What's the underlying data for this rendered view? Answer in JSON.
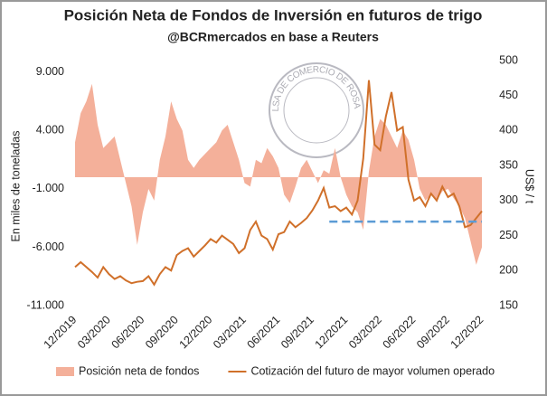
{
  "chart_data": {
    "type": "area_line",
    "title": "Posición Neta de Fondos de Inversión en futuros de trigo",
    "subtitle": "@BCRmercados en base a Reuters",
    "watermark": "BOLSA DE COMERCIO DE ROSARIO",
    "ylabel": "En miles de toneladas",
    "y2label": "US$ / t",
    "categories": [
      "12/2019",
      null,
      null,
      null,
      null,
      null,
      "03/2020",
      null,
      null,
      null,
      null,
      null,
      "06/2020",
      null,
      null,
      null,
      null,
      null,
      "09/2020",
      null,
      null,
      null,
      null,
      null,
      "12/2020",
      null,
      null,
      null,
      null,
      null,
      "03/2021",
      null,
      null,
      null,
      null,
      null,
      "06/2021",
      null,
      null,
      null,
      null,
      null,
      "09/2021",
      null,
      null,
      null,
      null,
      null,
      "12/2021",
      null,
      null,
      null,
      null,
      null,
      "03/2022",
      null,
      null,
      null,
      null,
      null,
      "06/2022",
      null,
      null,
      null,
      null,
      null,
      "09/2022",
      null,
      null,
      null,
      null,
      null,
      "12/2022"
    ],
    "series": [
      {
        "name": "Posición neta de fondos",
        "color": "#f4b09a",
        "kind": "area",
        "values": [
          3000,
          5500,
          6500,
          8000,
          4500,
          2500,
          3000,
          3500,
          1500,
          -500,
          -2500,
          -5800,
          -3000,
          -1000,
          -2000,
          1500,
          3500,
          6500,
          5000,
          4000,
          1500,
          800,
          1500,
          2000,
          2500,
          3000,
          4000,
          4500,
          3000,
          1500,
          -500,
          -800,
          1500,
          1200,
          2500,
          1800,
          800,
          -1500,
          -2200,
          -800,
          800,
          1500,
          500,
          -500,
          600,
          300,
          2500,
          0,
          -1500,
          -2500,
          -3000,
          -4500,
          500,
          3500,
          5000,
          4500,
          3500,
          2500,
          4000,
          3200,
          1500,
          -1000,
          -2000,
          -1500,
          -2000,
          -1200,
          -1000,
          -1800,
          -2500,
          -3500,
          -5500,
          -7500,
          -6000
        ]
      },
      {
        "name": "Cotización del futuro de mayor volumen operado",
        "color": "#d0702a",
        "kind": "line",
        "axis": "y2",
        "values": [
          205,
          212,
          205,
          198,
          190,
          205,
          195,
          188,
          192,
          186,
          182,
          184,
          185,
          192,
          180,
          195,
          205,
          200,
          222,
          228,
          232,
          220,
          228,
          236,
          245,
          240,
          250,
          244,
          238,
          225,
          232,
          258,
          270,
          250,
          245,
          230,
          252,
          255,
          270,
          262,
          268,
          275,
          286,
          300,
          318,
          290,
          292,
          285,
          290,
          280,
          300,
          360,
          472,
          380,
          372,
          420,
          455,
          400,
          405,
          330,
          300,
          305,
          292,
          310,
          300,
          320,
          305,
          310,
          292,
          262,
          265,
          275,
          285
        ]
      }
    ],
    "reference_line": {
      "value": 270,
      "axis": "y2",
      "color": "#5b9bd5",
      "start": 45,
      "end": 72
    },
    "ylim": [
      -11000,
      10000
    ],
    "yticks": [
      {
        "value": -11000,
        "label": "-11.000"
      },
      {
        "value": -6000,
        "label": "-6.000"
      },
      {
        "value": -1000,
        "label": "-1.000"
      },
      {
        "value": 4000,
        "label": "4.000"
      },
      {
        "value": 9000,
        "label": "9.000"
      }
    ],
    "y2lim": [
      150,
      500
    ],
    "y2ticks": [
      150,
      200,
      250,
      300,
      350,
      400,
      450,
      500
    ],
    "grid": false,
    "legend": "bottom"
  }
}
